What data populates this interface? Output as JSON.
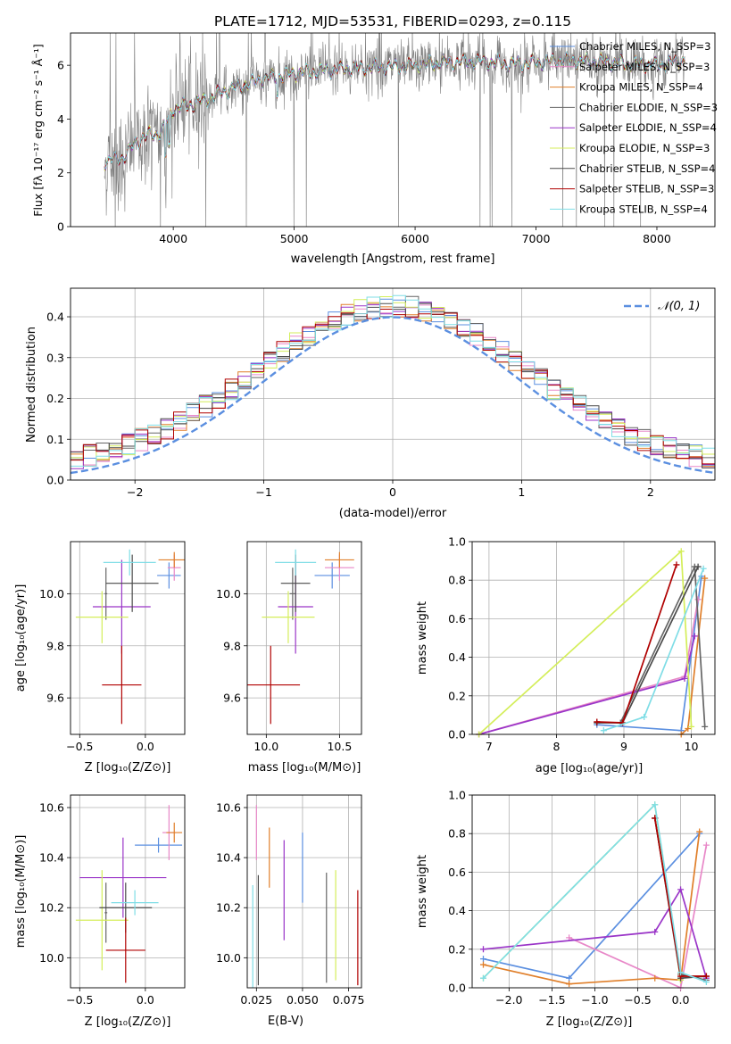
{
  "title": "PLATE=1712, MJD=53531, FIBERID=0293, z=0.115",
  "colors": {
    "series": [
      "#5b8fe0",
      "#e888c8",
      "#e07f2a",
      "#666666",
      "#9a35c8",
      "#d4ee5a",
      "#4a4a4a",
      "#b00000",
      "#7fdde6"
    ],
    "data": "#808080",
    "gaussian": "#5b8fe0",
    "grid": "#b0b0b0"
  },
  "labels": {
    "spec_xlabel": "wavelength [Angstrom, rest frame]",
    "spec_ylabel": "Flux [fλ 10⁻¹⁷ erg cm⁻² s⁻¹ Å⁻¹]",
    "resid_xlabel": "(data-model)/error",
    "resid_ylabel": "Normed distribution",
    "normal_legend": "𝒩(0, 1)",
    "z_label": "Z [log₁₀(Z/Z⊙)]",
    "age_label": "age  [log₁₀(age/yr)]",
    "mass_label": "mass [log₁₀(M/M⊙)]",
    "ebv_label": "E(B-V)",
    "weight_label": "mass weight"
  },
  "chart_data": [
    {
      "type": "line",
      "id": "spectrum",
      "title": "PLATE=1712, MJD=53531, FIBERID=0293, z=0.115",
      "xlabel": "wavelength [Angstrom, rest frame]",
      "ylabel": "Flux",
      "xlim": [
        3150,
        8480
      ],
      "ylim": [
        0,
        7.2
      ],
      "xticks": [
        4000,
        5000,
        6000,
        7000,
        8000
      ],
      "yticks": [
        0,
        2,
        4,
        6
      ],
      "data_range": [
        3430,
        8230
      ],
      "continuum": [
        [
          3430,
          2.4
        ],
        [
          3500,
          2.5
        ],
        [
          3600,
          2.6
        ],
        [
          3700,
          3.2
        ],
        [
          3800,
          3.4
        ],
        [
          3900,
          3.5
        ],
        [
          4000,
          4.4
        ],
        [
          4100,
          4.5
        ],
        [
          4200,
          4.6
        ],
        [
          4400,
          5.0
        ],
        [
          4600,
          5.3
        ],
        [
          4800,
          5.55
        ],
        [
          5000,
          5.7
        ],
        [
          5200,
          5.8
        ],
        [
          5500,
          5.9
        ],
        [
          5800,
          5.95
        ],
        [
          6000,
          6.0
        ],
        [
          6200,
          6.1
        ],
        [
          6500,
          6.15
        ],
        [
          6800,
          6.05
        ],
        [
          7000,
          6.1
        ],
        [
          7200,
          6.2
        ],
        [
          7500,
          6.15
        ],
        [
          7800,
          6.05
        ],
        [
          8000,
          6.0
        ],
        [
          8230,
          6.2
        ]
      ],
      "series": [
        {
          "name": "Chabrier MILES, N_SSP=3",
          "color_index": 0
        },
        {
          "name": "Salpeter MILES, N_SSP=3",
          "color_index": 1
        },
        {
          "name": "Kroupa MILES, N_SSP=4",
          "color_index": 2
        },
        {
          "name": "Chabrier ELODIE, N_SSP=3",
          "color_index": 3
        },
        {
          "name": "Salpeter ELODIE, N_SSP=4",
          "color_index": 4
        },
        {
          "name": "Kroupa ELODIE, N_SSP=3",
          "color_index": 5
        },
        {
          "name": "Chabrier STELIB, N_SSP=4",
          "color_index": 6
        },
        {
          "name": "Salpeter STELIB, N_SSP=3",
          "color_index": 7
        },
        {
          "name": "Kroupa STELIB, N_SSP=4",
          "color_index": 8
        }
      ],
      "legend": "upper-right"
    },
    {
      "type": "step",
      "id": "residuals",
      "xlabel": "(data-model)/error",
      "ylabel": "Normed distribution",
      "xlim": [
        -2.5,
        2.5
      ],
      "ylim": [
        0,
        0.47
      ],
      "xticks": [
        -2,
        -1,
        0,
        1,
        2
      ],
      "yticks": [
        0.0,
        0.1,
        0.2,
        0.3,
        0.4
      ],
      "bin_width": 0.1,
      "bin_start": -2.5,
      "grid": true,
      "gaussian": {
        "mean": 0,
        "sigma": 1,
        "name": "𝒩(0, 1)"
      },
      "legend": "upper-right"
    },
    {
      "type": "errorbar",
      "id": "z-age",
      "xlabel": "Z [log₁₀(Z/Z⊙)]",
      "ylabel": "age  [log₁₀(age/yr)]",
      "xlim": [
        -0.57,
        0.3
      ],
      "ylim": [
        9.46,
        10.2
      ],
      "xticks": [
        -0.5,
        0.0
      ],
      "yticks": [
        9.6,
        9.8,
        10.0
      ],
      "grid": true,
      "points": [
        {
          "c": 0,
          "x": 0.18,
          "xe": 0.09,
          "y": 10.07,
          "ye": 0.05
        },
        {
          "c": 1,
          "x": 0.22,
          "xe": 0.05,
          "y": 10.1,
          "ye": 0.05
        },
        {
          "c": 2,
          "x": 0.22,
          "xe": 0.12,
          "y": 10.13,
          "ye": 0.03
        },
        {
          "c": 3,
          "x": -0.3,
          "xe": 0.01,
          "y": 10.0,
          "ye": 0.1
        },
        {
          "c": 4,
          "x": -0.18,
          "xe": 0.22,
          "y": 9.95,
          "ye": 0.18
        },
        {
          "c": 5,
          "x": -0.33,
          "xe": 0.2,
          "y": 9.91,
          "ye": 0.1
        },
        {
          "c": 6,
          "x": -0.1,
          "xe": 0.2,
          "y": 10.04,
          "ye": 0.11
        },
        {
          "c": 7,
          "x": -0.18,
          "xe": 0.15,
          "y": 9.65,
          "ye": 0.15
        },
        {
          "c": 8,
          "x": -0.12,
          "xe": 0.2,
          "y": 10.12,
          "ye": 0.05
        }
      ]
    },
    {
      "type": "errorbar",
      "id": "mass-age",
      "xlabel": "mass [log₁₀(M/M⊙)]",
      "xlim": [
        9.87,
        10.65
      ],
      "ylim": [
        9.46,
        10.2
      ],
      "xticks": [
        10.0,
        10.5
      ],
      "yticks": [
        9.6,
        9.8,
        10.0
      ],
      "grid": true,
      "points": [
        {
          "c": 0,
          "x": 10.45,
          "xe": 0.12,
          "y": 10.07,
          "ye": 0.05
        },
        {
          "c": 1,
          "x": 10.5,
          "xe": 0.1,
          "y": 10.1,
          "ye": 0.05
        },
        {
          "c": 2,
          "x": 10.5,
          "xe": 0.1,
          "y": 10.13,
          "ye": 0.03
        },
        {
          "c": 3,
          "x": 10.18,
          "xe": 0.02,
          "y": 10.0,
          "ye": 0.1
        },
        {
          "c": 4,
          "x": 10.2,
          "xe": 0.12,
          "y": 9.95,
          "ye": 0.18
        },
        {
          "c": 5,
          "x": 10.15,
          "xe": 0.18,
          "y": 9.91,
          "ye": 0.1
        },
        {
          "c": 6,
          "x": 10.2,
          "xe": 0.1,
          "y": 10.04,
          "ye": 0.11
        },
        {
          "c": 7,
          "x": 10.03,
          "xe": 0.2,
          "y": 9.65,
          "ye": 0.15
        },
        {
          "c": 8,
          "x": 10.2,
          "xe": 0.14,
          "y": 10.12,
          "ye": 0.05
        }
      ]
    },
    {
      "type": "line",
      "id": "age-weight",
      "xlabel": "age  [log₁₀(age/yr)]",
      "ylabel": "mass weight",
      "xlim": [
        6.75,
        10.35
      ],
      "ylim": [
        0,
        1.0
      ],
      "xticks": [
        7,
        8,
        9,
        10
      ],
      "yticks": [
        0.0,
        0.2,
        0.4,
        0.6,
        0.8,
        1.0
      ],
      "grid": true,
      "series": [
        {
          "c": 0,
          "x": [
            8.6,
            9.85,
            10.15
          ],
          "y": [
            0.05,
            0.02,
            0.82
          ]
        },
        {
          "c": 1,
          "x": [
            6.85,
            9.9,
            10.1
          ],
          "y": [
            0.0,
            0.3,
            0.7
          ]
        },
        {
          "c": 2,
          "x": [
            9.85,
            9.95,
            10.2
          ],
          "y": [
            0.0,
            0.03,
            0.81
          ]
        },
        {
          "c": 3,
          "x": [
            8.95,
            10.05,
            10.2
          ],
          "y": [
            0.06,
            0.87,
            0.04
          ]
        },
        {
          "c": 4,
          "x": [
            6.85,
            9.9,
            10.05
          ],
          "y": [
            0.0,
            0.29,
            0.51
          ]
        },
        {
          "c": 5,
          "x": [
            6.85,
            9.85,
            10.0
          ],
          "y": [
            0.0,
            0.95,
            0.04
          ]
        },
        {
          "c": 6,
          "x": [
            8.6,
            8.98,
            10.1
          ],
          "y": [
            0.06,
            0.06,
            0.87
          ]
        },
        {
          "c": 7,
          "x": [
            8.6,
            8.98,
            9.78
          ],
          "y": [
            0.065,
            0.06,
            0.88
          ]
        },
        {
          "c": 8,
          "x": [
            8.7,
            9.3,
            10.18
          ],
          "y": [
            0.02,
            0.09,
            0.86
          ]
        }
      ]
    },
    {
      "type": "errorbar",
      "id": "z-mass",
      "xlabel": "Z [log₁₀(Z/Z⊙)]",
      "ylabel": "mass [log₁₀(M/M⊙)]",
      "xlim": [
        -0.57,
        0.3
      ],
      "ylim": [
        9.88,
        10.65
      ],
      "xticks": [
        -0.5,
        0.0
      ],
      "yticks": [
        10.0,
        10.2,
        10.4,
        10.6
      ],
      "grid": true,
      "points": [
        {
          "c": 0,
          "x": 0.1,
          "xe": 0.18,
          "y": 10.45,
          "ye": 0.03
        },
        {
          "c": 1,
          "x": 0.18,
          "xe": 0.05,
          "y": 10.5,
          "ye": 0.11
        },
        {
          "c": 2,
          "x": 0.22,
          "xe": 0.06,
          "y": 10.5,
          "ye": 0.04
        },
        {
          "c": 3,
          "x": -0.3,
          "xe": 0.01,
          "y": 10.18,
          "ye": 0.12
        },
        {
          "c": 4,
          "x": -0.17,
          "xe": 0.33,
          "y": 10.32,
          "ye": 0.16
        },
        {
          "c": 5,
          "x": -0.33,
          "xe": 0.2,
          "y": 10.15,
          "ye": 0.2
        },
        {
          "c": 6,
          "x": -0.15,
          "xe": 0.2,
          "y": 10.2,
          "ye": 0.1
        },
        {
          "c": 7,
          "x": -0.15,
          "xe": 0.15,
          "y": 10.03,
          "ye": 0.13
        },
        {
          "c": 8,
          "x": -0.08,
          "xe": 0.18,
          "y": 10.22,
          "ye": 0.05
        }
      ]
    },
    {
      "type": "errorbar",
      "id": "ebv-mass",
      "xlabel": "E(B-V)",
      "xlim": [
        0.02,
        0.082
      ],
      "ylim": [
        9.88,
        10.65
      ],
      "xticks": [
        0.025,
        0.05,
        0.075
      ],
      "yticks": [
        10.0,
        10.2,
        10.4,
        10.6
      ],
      "grid": true,
      "points": [
        {
          "c": 0,
          "x": 0.05,
          "y": 10.36,
          "ye": 0.14
        },
        {
          "c": 1,
          "x": 0.025,
          "y": 10.5,
          "ye": 0.11
        },
        {
          "c": 2,
          "x": 0.032,
          "y": 10.4,
          "ye": 0.12
        },
        {
          "c": 3,
          "x": 0.063,
          "y": 10.12,
          "ye": 0.22
        },
        {
          "c": 4,
          "x": 0.04,
          "y": 10.27,
          "ye": 0.2
        },
        {
          "c": 5,
          "x": 0.068,
          "y": 10.13,
          "ye": 0.22
        },
        {
          "c": 6,
          "x": 0.026,
          "y": 10.11,
          "ye": 0.22
        },
        {
          "c": 7,
          "x": 0.08,
          "y": 10.08,
          "ye": 0.19
        },
        {
          "c": 8,
          "x": 0.023,
          "y": 10.08,
          "ye": 0.21
        }
      ]
    },
    {
      "type": "line",
      "id": "z-weight",
      "xlabel": "Z [log₁₀(Z/Z⊙)]",
      "ylabel": "mass weight",
      "xlim": [
        -2.43,
        0.4
      ],
      "ylim": [
        0,
        1.0
      ],
      "xticks": [
        -2.0,
        -1.5,
        -1.0,
        -0.5,
        0.0
      ],
      "yticks": [
        0.0,
        0.2,
        0.4,
        0.6,
        0.8,
        1.0
      ],
      "grid": true,
      "series": [
        {
          "c": 0,
          "x": [
            -2.3,
            -1.3,
            0.22
          ],
          "y": [
            0.15,
            0.05,
            0.8
          ]
        },
        {
          "c": 1,
          "x": [
            -1.3,
            0.0,
            0.3
          ],
          "y": [
            0.26,
            0.0,
            0.74
          ]
        },
        {
          "c": 2,
          "x": [
            -2.3,
            -1.3,
            -0.3,
            0.0,
            0.22
          ],
          "y": [
            0.12,
            0.02,
            0.05,
            0.04,
            0.81
          ]
        },
        {
          "c": 3,
          "x": [
            -0.3,
            0.0,
            0.3
          ],
          "y": [
            0.88,
            0.07,
            0.04
          ]
        },
        {
          "c": 4,
          "x": [
            -2.3,
            -0.3,
            0.0,
            0.3
          ],
          "y": [
            0.2,
            0.29,
            0.51,
            0.05
          ]
        },
        {
          "c": 5,
          "x": [
            -2.3,
            -0.3,
            0.0
          ],
          "y": [
            0.05,
            0.95,
            0.04
          ]
        },
        {
          "c": 6,
          "x": [
            -0.3,
            0.0,
            0.3
          ],
          "y": [
            0.88,
            0.05,
            0.06
          ]
        },
        {
          "c": 7,
          "x": [
            -0.3,
            0.0,
            0.3
          ],
          "y": [
            0.88,
            0.06,
            0.06
          ]
        },
        {
          "c": 8,
          "x": [
            -2.3,
            -0.3,
            0.0,
            0.3
          ],
          "y": [
            0.05,
            0.95,
            0.08,
            0.03
          ]
        }
      ]
    }
  ]
}
